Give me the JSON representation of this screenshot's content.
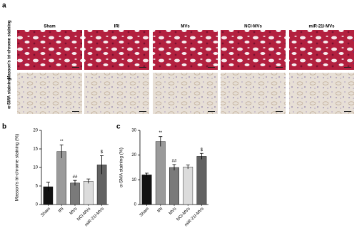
{
  "panel_a": {
    "label": "a",
    "columns": [
      "Sham",
      "IRI",
      "MVs",
      "NCl-MVs",
      "miR-21I-MVs"
    ],
    "rows": [
      "Masson's tri-chrome staining",
      "α-SMA staining"
    ]
  },
  "chart_data": [
    {
      "type": "bar",
      "panel_label": "b",
      "y_label": "Masson's tri-chrome staining (%)",
      "categories": [
        "Sham",
        "IRI",
        "MVs",
        "NCl-MVs",
        "miR-21I-MVs"
      ],
      "values": [
        4.8,
        14.3,
        5.8,
        6.3,
        10.7
      ],
      "errors": [
        1.2,
        1.8,
        0.7,
        0.6,
        2.5
      ],
      "annotations": [
        null,
        "**",
        "##",
        null,
        "$"
      ],
      "colors": [
        "#111111",
        "#9a9a9a",
        "#7a7a7a",
        "#dcdcdc",
        "#626262"
      ],
      "ylim": [
        0,
        20
      ],
      "yticks": [
        0,
        5,
        10,
        15,
        20
      ]
    },
    {
      "type": "bar",
      "panel_label": "c",
      "y_label": "α-SMA staining (%)",
      "categories": [
        "Sham",
        "IRI",
        "MVs",
        "NCl-MVs",
        "miR-21I-MVs"
      ],
      "values": [
        12,
        25.5,
        15,
        15.2,
        19.5
      ],
      "errors": [
        0.7,
        2,
        1.2,
        0.8,
        1.2
      ],
      "annotations": [
        null,
        "**",
        "##",
        null,
        "$"
      ],
      "colors": [
        "#111111",
        "#9a9a9a",
        "#7a7a7a",
        "#dcdcdc",
        "#626262"
      ],
      "ylim": [
        0,
        30
      ],
      "yticks": [
        0,
        10,
        20,
        30
      ]
    }
  ]
}
